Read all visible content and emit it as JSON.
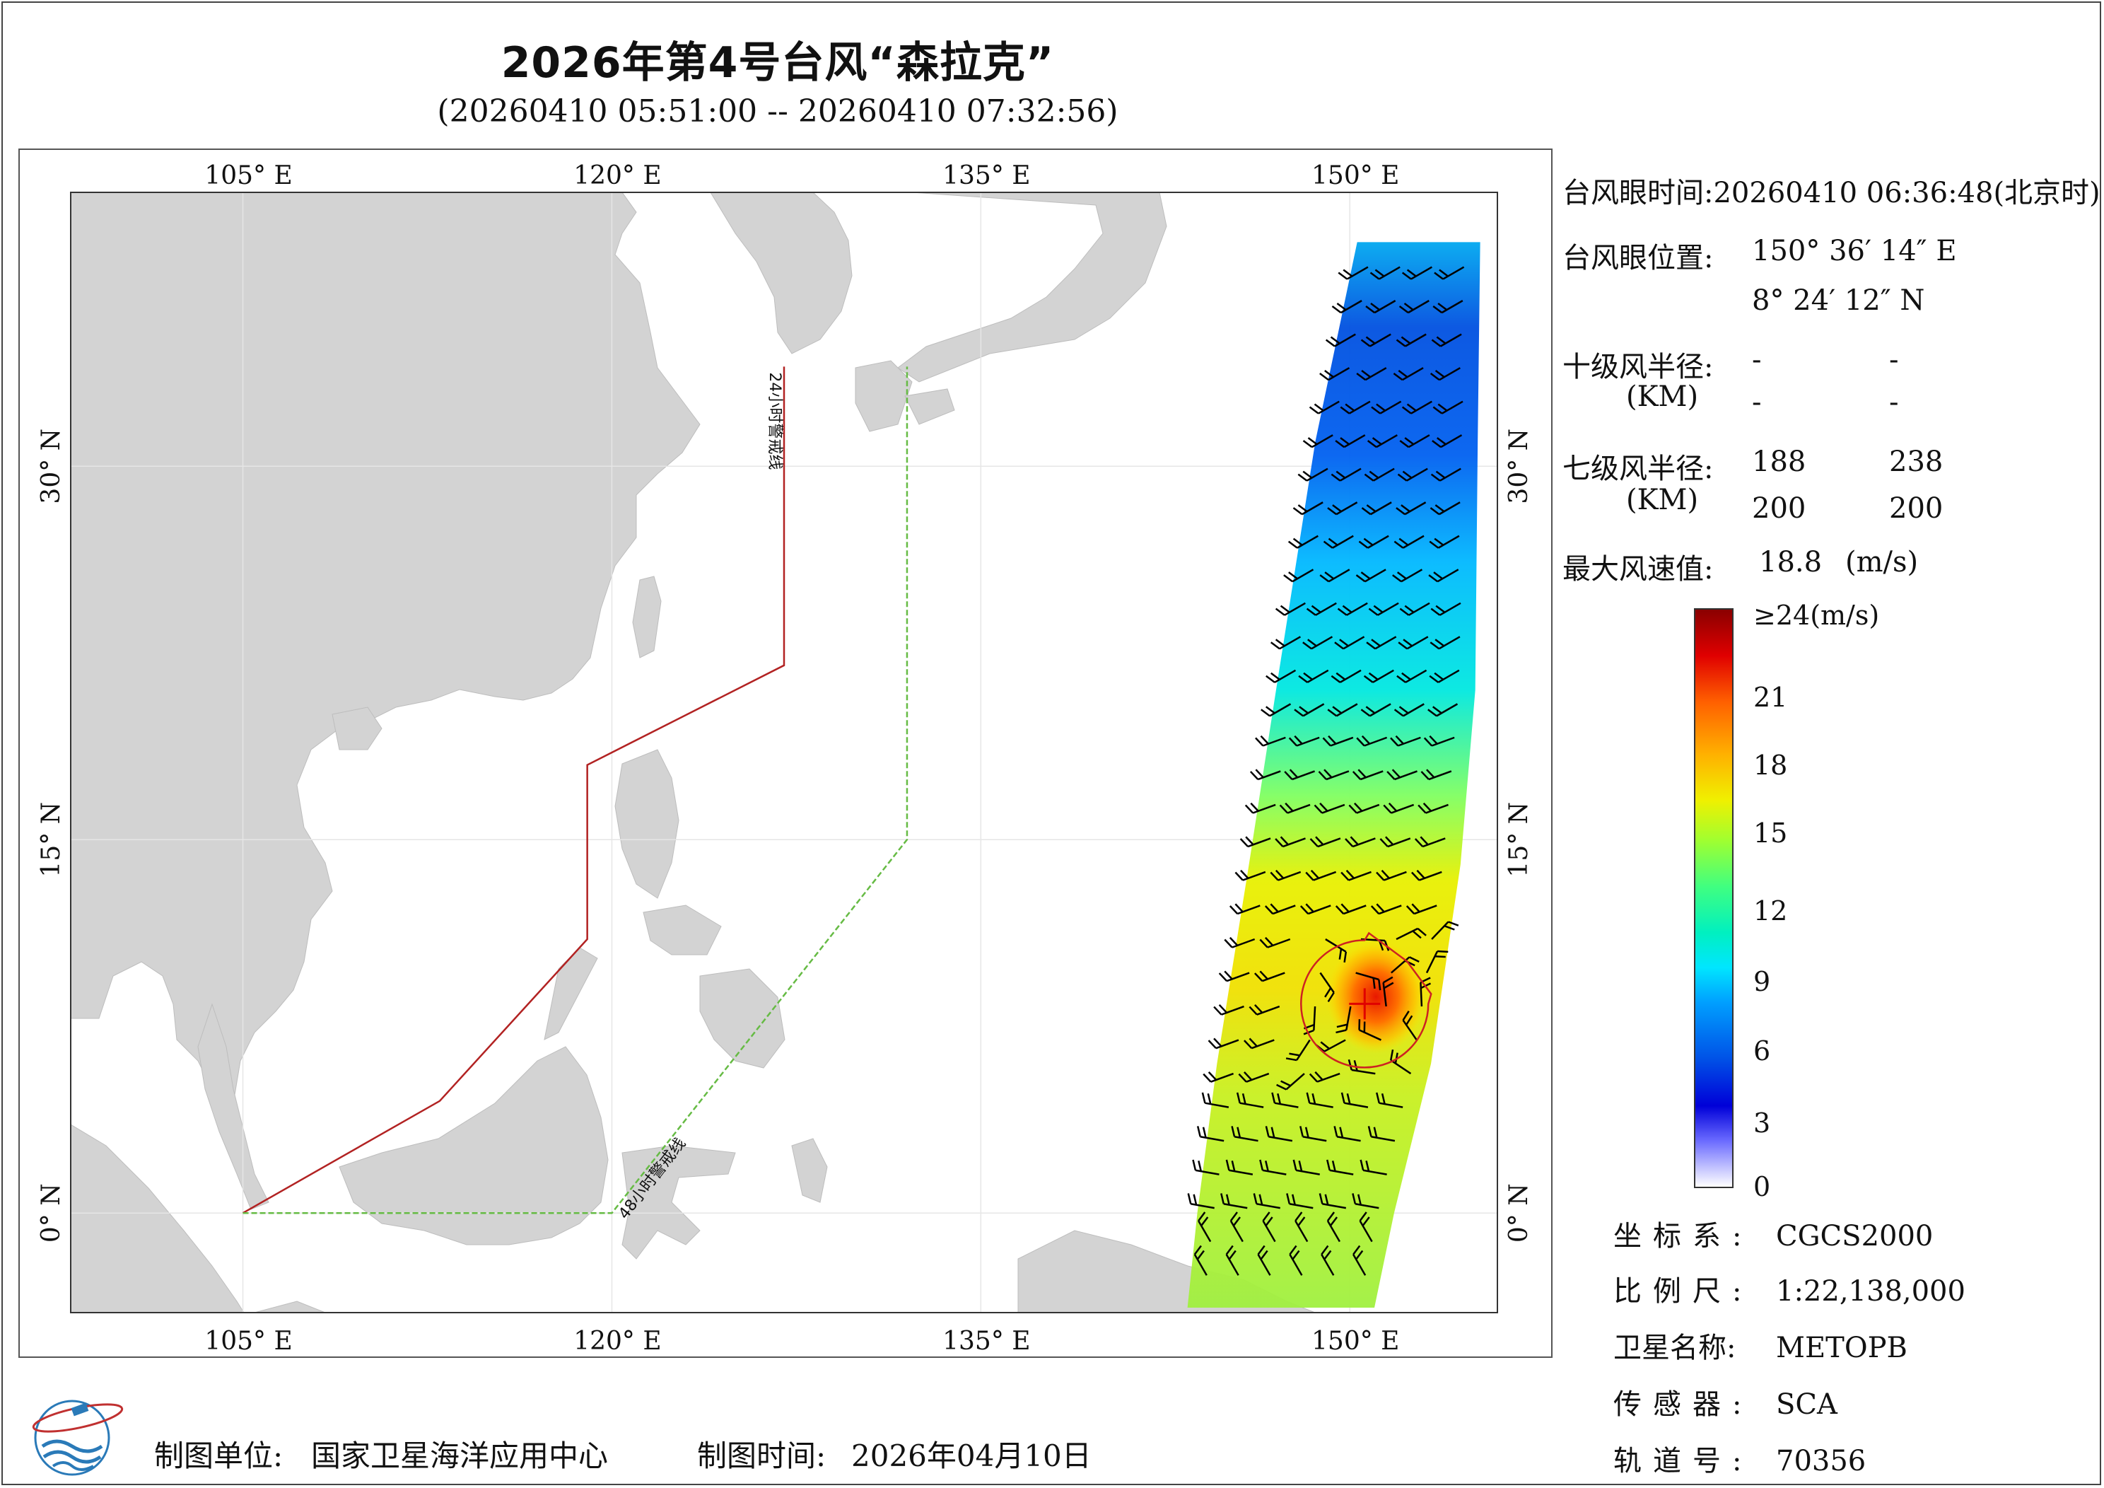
{
  "header": {
    "title": "2026年第4号台风“森拉克”",
    "subtitle": "(20260410 05:51:00 -- 20260410 07:32:56)"
  },
  "map": {
    "lon_range": [
      98,
      156
    ],
    "lat_range": [
      -4,
      41
    ],
    "lon_ticks": [
      {
        "value": 105,
        "label": "105° E"
      },
      {
        "value": 120,
        "label": "120° E"
      },
      {
        "value": 135,
        "label": "135° E"
      },
      {
        "value": 150,
        "label": "150° E"
      }
    ],
    "lat_ticks": [
      {
        "value": 30,
        "label": "30° N"
      },
      {
        "value": 15,
        "label": "15° N"
      },
      {
        "value": 0,
        "label": "0° N"
      }
    ],
    "land_color": "#d3d3d3",
    "grid": true,
    "warning_line_24h": {
      "label": "24小时警戒线",
      "color": "#b22222",
      "points": [
        [
          127,
          34
        ],
        [
          127,
          22
        ],
        [
          119,
          18
        ],
        [
          119,
          11
        ],
        [
          113,
          4.5
        ],
        [
          105,
          0
        ]
      ]
    },
    "warning_line_48h": {
      "label": "48小时警戒线",
      "color": "#66bb44",
      "points": [
        [
          105,
          0
        ],
        [
          120,
          0
        ],
        [
          132,
          15
        ],
        [
          132,
          34
        ]
      ]
    },
    "typhoon_eye": {
      "lon": 150.604,
      "lat": 8.403
    },
    "swath": {
      "edges_left": [
        [
          150.3,
          39
        ],
        [
          148.6,
          31
        ],
        [
          147.0,
          21
        ],
        [
          145.9,
          14
        ],
        [
          144.6,
          6
        ],
        [
          143.8,
          0
        ],
        [
          143.4,
          -3.8
        ]
      ],
      "edges_right": [
        [
          155.3,
          39
        ],
        [
          155.2,
          31
        ],
        [
          155.1,
          21
        ],
        [
          154.5,
          14
        ],
        [
          153.3,
          6
        ],
        [
          151.8,
          0
        ],
        [
          151.0,
          -3.8
        ]
      ]
    }
  },
  "info": {
    "eye_time_label": "台风眼时间:",
    "eye_time": "20260410 06:36:48(北京时)",
    "eye_pos_label": "台风眼位置:",
    "eye_lon": "150° 36′ 14″ E",
    "eye_lat": "8° 24′ 12″ N",
    "r10_label": "十级风半径:",
    "km_label": "(KM)",
    "r10_values": [
      "-",
      "-",
      "-",
      "-"
    ],
    "r7_label": "七级风半径:",
    "r7_values": [
      "188",
      "238",
      "200",
      "200"
    ],
    "max_wind_label": "最大风速值:",
    "max_wind": "18.8",
    "max_wind_unit": "(m/s)"
  },
  "legend": {
    "ticks": [
      "≥24(m/s)",
      "21",
      "18",
      "15",
      "12",
      "9",
      "6",
      "3",
      "0"
    ],
    "range": [
      0,
      24
    ]
  },
  "meta": {
    "crs_label": "坐标系:",
    "crs": "CGCS2000",
    "scale_label": "比例尺:",
    "scale": "1:22,138,000",
    "satellite_label": "卫星名称:",
    "satellite": "METOPB",
    "sensor_label": "传感器:",
    "sensor": "SCA",
    "orbit_label": "轨道号:",
    "orbit": "70356"
  },
  "footer": {
    "producer_label": "制图单位:",
    "producer": "国家卫星海洋应用中心",
    "date_label": "制图时间:",
    "date": "2026年04月10日"
  }
}
